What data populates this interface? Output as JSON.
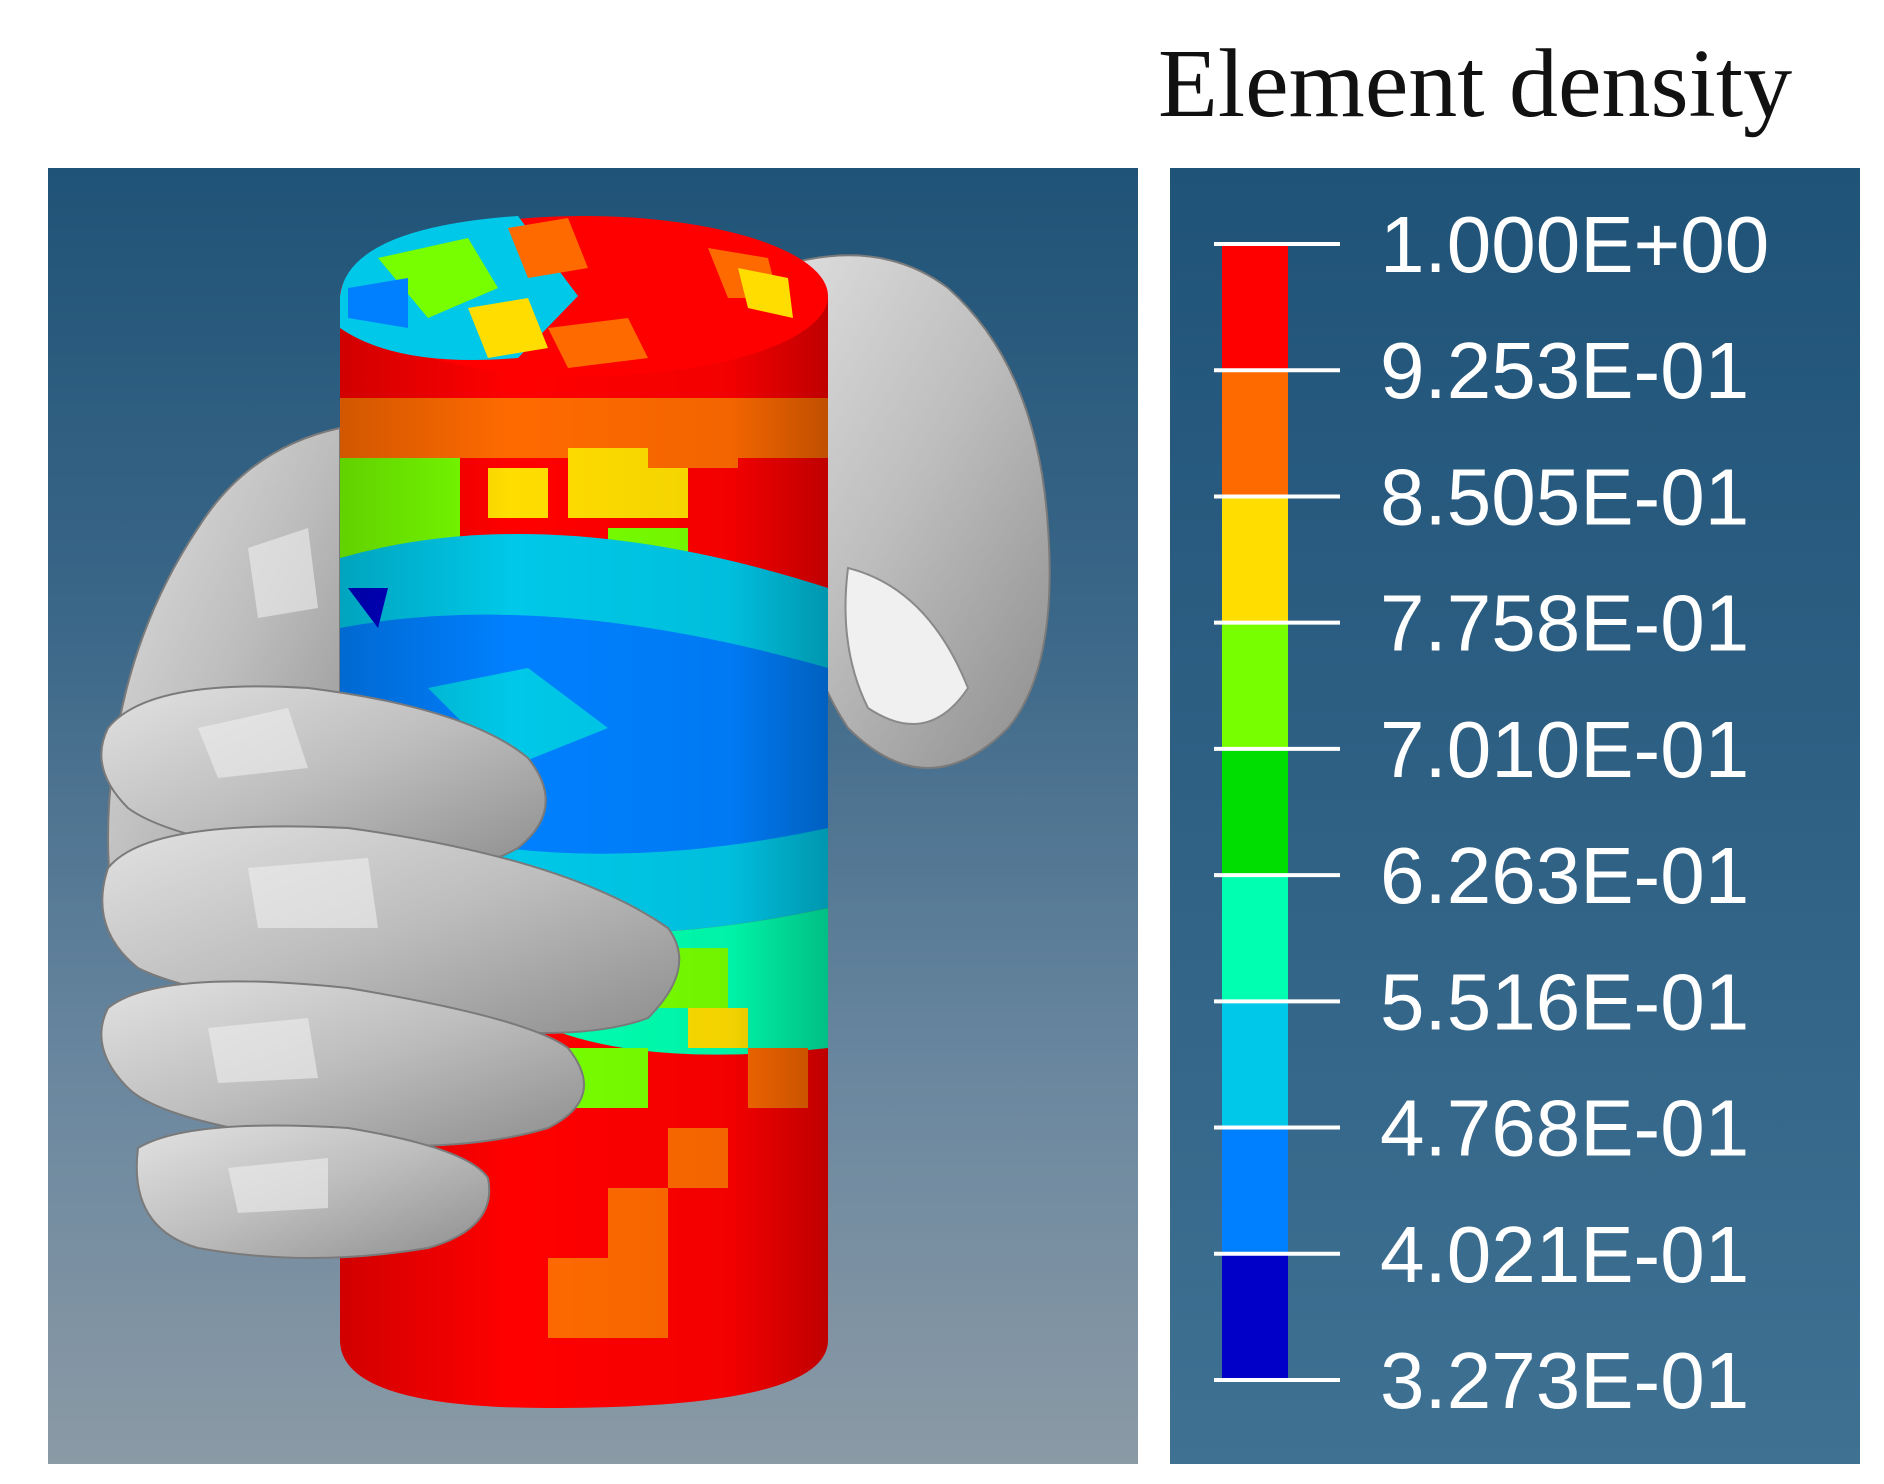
{
  "legend": {
    "title": "Element density",
    "ticks": [
      "1.000E+00",
      "9.253E-01",
      "8.505E-01",
      "7.758E-01",
      "7.010E-01",
      "6.263E-01",
      "5.516E-01",
      "4.768E-01",
      "4.021E-01",
      "3.273E-01"
    ],
    "colors": [
      "#ff0000",
      "#ff6a00",
      "#ffdd00",
      "#77ff00",
      "#00dd00",
      "#00ffb0",
      "#00c8e8",
      "#0080ff",
      "#0000c8"
    ]
  },
  "colors": {
    "background_top": "#1f5377",
    "background_bottom": "#8b9aa5",
    "hand": "#c8c8c8",
    "hand_shadow": "#8a8a8a"
  }
}
